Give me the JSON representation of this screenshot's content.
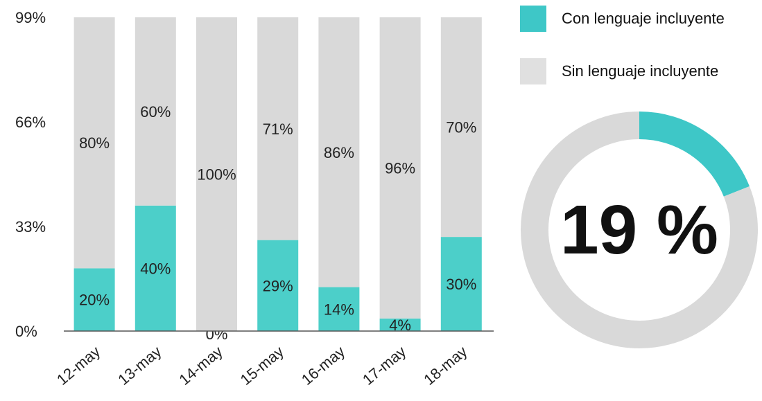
{
  "chart_data": [
    {
      "type": "bar",
      "stacked": true,
      "categories": [
        "12-may",
        "13-may",
        "14-may",
        "15-may",
        "16-may",
        "17-may",
        "18-may"
      ],
      "series": [
        {
          "name": "Con lenguaje incluyente",
          "values": [
            20,
            40,
            0,
            29,
            14,
            4,
            30
          ],
          "color": "#4ccfc9"
        },
        {
          "name": "Sin lenguaje incluyente",
          "values": [
            80,
            60,
            100,
            71,
            86,
            96,
            70
          ],
          "color": "#d9d9d9"
        }
      ],
      "ytick_labels": [
        "0%",
        "33%",
        "66%",
        "99%"
      ],
      "ylim": [
        0,
        100
      ],
      "legend": "top-right",
      "grid": false
    },
    {
      "type": "pie",
      "donut": true,
      "values": [
        19,
        81
      ],
      "colors": [
        "#3ec7c7",
        "#d9d9d9"
      ],
      "center_label": "19 %"
    }
  ],
  "legend": {
    "items": [
      {
        "label": "Con lenguaje incluyente",
        "color": "#3ec7c7"
      },
      {
        "label": "Sin lenguaje incluyente",
        "color": "#e0e0e0"
      }
    ]
  }
}
